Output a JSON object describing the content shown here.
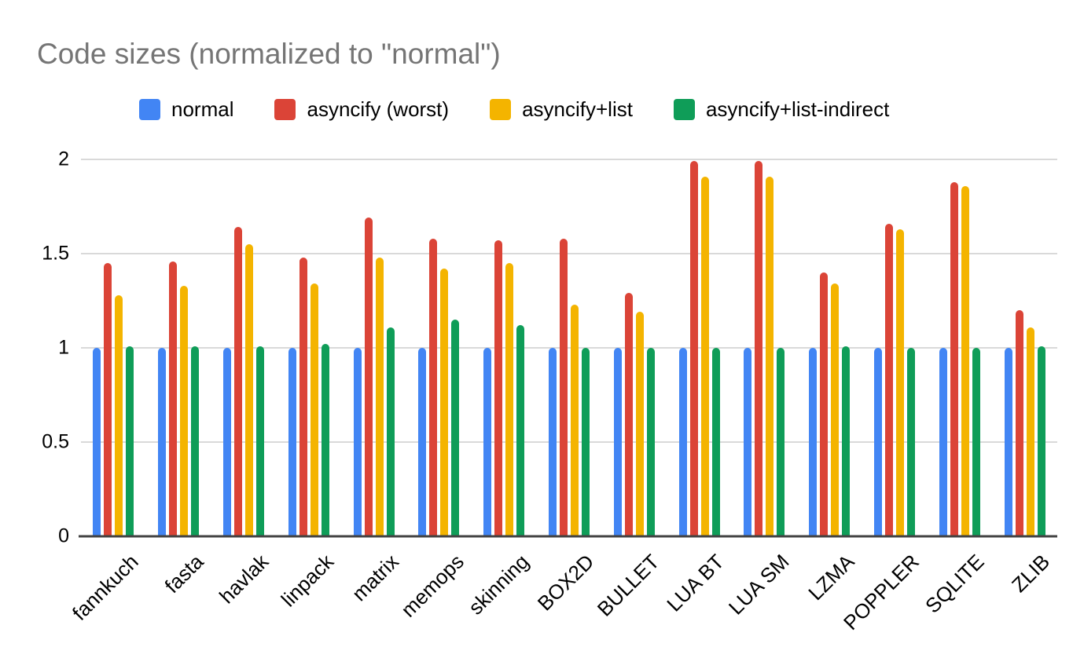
{
  "colors": {
    "normal": "#4285F4",
    "asyncify_worst": "#DB4437",
    "asyncify_list": "#F4B400",
    "asyncify_list_indirect": "#0F9D58",
    "gridline": "#D9D9D9",
    "axis_line": "#424242",
    "title_text": "#757575",
    "label_text": "#000000"
  },
  "chart_data": {
    "type": "bar",
    "title": "Code sizes (normalized to \"normal\")",
    "xlabel": "",
    "ylabel": "",
    "ylim": [
      0,
      2
    ],
    "yticks": [
      0,
      0.5,
      1,
      1.5,
      2
    ],
    "grid": true,
    "legend_position": "top",
    "categories": [
      "fannkuch",
      "fasta",
      "havlak",
      "linpack",
      "matrix",
      "memops",
      "skinning",
      "BOX2D",
      "BULLET",
      "LUA BT",
      "LUA SM",
      "LZMA",
      "POPPLER",
      "SQLITE",
      "ZLIB"
    ],
    "series": [
      {
        "name": "normal",
        "color": "#4285F4",
        "values": [
          1.0,
          1.0,
          1.0,
          1.0,
          1.0,
          1.0,
          1.0,
          1.0,
          1.0,
          1.0,
          1.0,
          1.0,
          1.0,
          1.0,
          1.0
        ]
      },
      {
        "name": "asyncify (worst)",
        "color": "#DB4437",
        "values": [
          1.45,
          1.46,
          1.64,
          1.48,
          1.69,
          1.58,
          1.57,
          1.58,
          1.29,
          1.99,
          1.99,
          1.4,
          1.66,
          1.88,
          1.2
        ]
      },
      {
        "name": "asyncify+list",
        "color": "#F4B400",
        "values": [
          1.28,
          1.33,
          1.55,
          1.34,
          1.48,
          1.42,
          1.45,
          1.23,
          1.19,
          1.91,
          1.91,
          1.34,
          1.63,
          1.86,
          1.11
        ]
      },
      {
        "name": "asyncify+list-indirect",
        "color": "#0F9D58",
        "values": [
          1.01,
          1.01,
          1.01,
          1.02,
          1.11,
          1.15,
          1.12,
          1.0,
          1.0,
          1.0,
          1.0,
          1.01,
          1.0,
          1.0,
          1.01
        ]
      }
    ]
  }
}
